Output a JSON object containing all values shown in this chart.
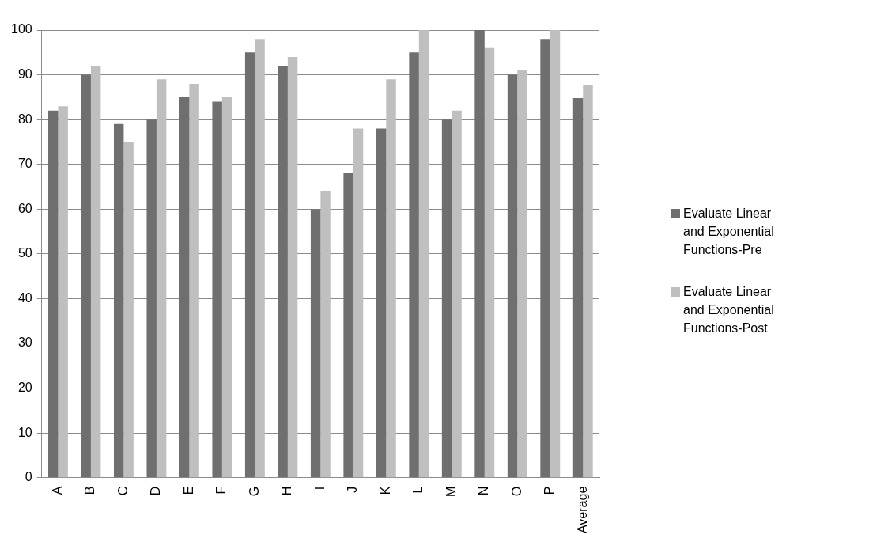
{
  "chart_data": {
    "type": "bar",
    "categories": [
      "A",
      "B",
      "C",
      "D",
      "E",
      "F",
      "G",
      "H",
      "I",
      "J",
      "K",
      "L",
      "M",
      "N",
      "O",
      "P",
      "Average"
    ],
    "series": [
      {
        "name": "Evaluate Linear and Exponential Functions-Pre",
        "color": "#6f6f6f",
        "values": [
          82,
          90,
          79,
          80,
          85,
          84,
          95,
          92,
          60,
          68,
          78,
          95,
          80,
          100,
          90,
          98,
          84.8
        ]
      },
      {
        "name": "Evaluate Linear and Exponential Functions-Post",
        "color": "#bfbfbf",
        "values": [
          83,
          92,
          75,
          89,
          88,
          85,
          98,
          94,
          64,
          78,
          89,
          100,
          82,
          96,
          91,
          100,
          87.8
        ]
      }
    ],
    "ylim": [
      0,
      100
    ],
    "yticks": [
      0,
      10,
      20,
      30,
      40,
      50,
      60,
      70,
      80,
      90,
      100
    ],
    "grid": "y",
    "legend": "right"
  }
}
